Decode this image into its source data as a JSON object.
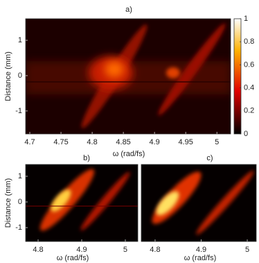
{
  "chart_data": [
    {
      "type": "heatmap",
      "title": "a)",
      "x_label": "ω (rad/fs)",
      "y_label": "Distance (mm)",
      "xlim": [
        4.6933,
        5.022
      ],
      "ylim": [
        -1.65,
        1.61
      ],
      "xticks": [
        4.7,
        4.75,
        4.8,
        4.85,
        4.9,
        4.95,
        5
      ],
      "yticks": [
        -1,
        0,
        1
      ],
      "colormap": "hot",
      "colorbar": {
        "lim": [
          0,
          1
        ],
        "ticks": [
          0,
          0.2,
          0.4,
          0.6,
          0.8,
          1
        ]
      }
    },
    {
      "type": "heatmap",
      "title": "b)",
      "x_label": "ω (rad/fs)",
      "y_label": "Distance (mm)",
      "xlim": [
        4.7714,
        5.0286
      ],
      "ylim": [
        -1.54,
        1.46
      ],
      "xticks": [
        4.8,
        4.9,
        5
      ],
      "yticks": [
        -1,
        0,
        1
      ],
      "colormap": "hot"
    },
    {
      "type": "heatmap",
      "title": "c)",
      "x_label": "ω (rad/fs)",
      "xlim": [
        4.77,
        5.0195
      ],
      "ylim": [
        -1.54,
        1.46
      ],
      "xticks": [
        4.8,
        4.9,
        5
      ],
      "colormap": "hot"
    }
  ]
}
